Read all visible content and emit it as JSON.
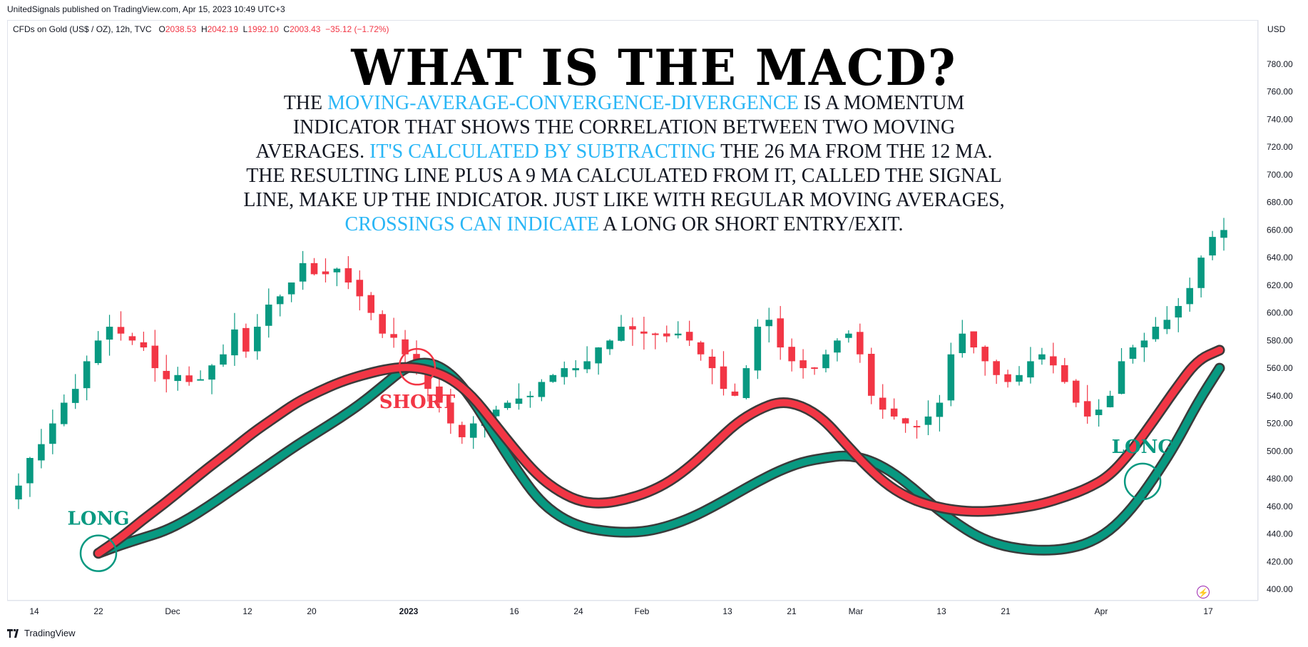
{
  "header": {
    "published": "UnitedSignals published on TradingView.com, Apr 15, 2023 10:49 UTC+3",
    "symbol": "CFDs on Gold (US$ / OZ), 12h, TVC",
    "o_label": "O",
    "o_value": "2038.53",
    "h_label": "H",
    "h_value": "2042.19",
    "l_label": "L",
    "l_value": "1992.10",
    "c_label": "C",
    "c_value": "2003.43",
    "change": "−35.12 (−1.72%)",
    "currency": "USD"
  },
  "annotation": {
    "title": "WHAT IS THE MACD?",
    "lines": [
      [
        {
          "t": "THE "
        },
        {
          "t": "MOVING-AVERAGE-CONVERGENCE-DIVERGENCE",
          "hl": true
        },
        {
          "t": " IS A MOMENTUM"
        }
      ],
      [
        {
          "t": "INDICATOR THAT SHOWS THE CORRELATION BETWEEN TWO MOVING"
        }
      ],
      [
        {
          "t": "AVERAGES. "
        },
        {
          "t": "IT'S CALCULATED BY SUBTRACTING",
          "hl": true
        },
        {
          "t": " THE 26 MA FROM THE 12 MA."
        }
      ],
      [
        {
          "t": "THE RESULTING LINE PLUS A 9 MA CALCULATED FROM IT, CALLED THE SIGNAL"
        }
      ],
      [
        {
          "t": "LINE, MAKE UP THE INDICATOR. JUST LIKE WITH REGULAR MOVING AVERAGES,"
        }
      ],
      [
        {
          "t": "CROSSINGS CAN INDICATE",
          "hl": true
        },
        {
          "t": " A LONG OR SHORT ENTRY/EXIT."
        }
      ]
    ],
    "markers": [
      {
        "label": "LONG",
        "color": "#089981"
      },
      {
        "label": "SHORT",
        "color": "#f23645"
      },
      {
        "label": "LONG",
        "color": "#089981"
      }
    ]
  },
  "footer": {
    "brand": "TradingView"
  },
  "colors": {
    "up": "#089981",
    "down": "#f23645",
    "highlight": "#29b6f6"
  },
  "chart_data": {
    "type": "candlestick",
    "ylim": [
      390,
      800
    ],
    "y_ticks": [
      400,
      420,
      440,
      460,
      480,
      500,
      520,
      540,
      560,
      580,
      600,
      620,
      640,
      660,
      680,
      700,
      720,
      740,
      760,
      780
    ],
    "x_tick_labels": [
      "14",
      "22",
      "Dec",
      "12",
      "20",
      "2023",
      "16",
      "24",
      "Feb",
      "13",
      "21",
      "Mar",
      "13",
      "21",
      "Apr",
      "17"
    ],
    "close_path": [
      475,
      495,
      505,
      520,
      535,
      545,
      565,
      580,
      590,
      585,
      580,
      575,
      560,
      552,
      555,
      550,
      552,
      562,
      570,
      588,
      572,
      590,
      606,
      612,
      622,
      636,
      628,
      628,
      632,
      622,
      612,
      600,
      585,
      582,
      570,
      560,
      545,
      535,
      520,
      510,
      520,
      525,
      530,
      535,
      538,
      540,
      550,
      555,
      560,
      560,
      565,
      575,
      580,
      590,
      588,
      585,
      584,
      583,
      585,
      580,
      570,
      560,
      545,
      540,
      560,
      590,
      595,
      575,
      565,
      560,
      560,
      570,
      580,
      585,
      570,
      540,
      530,
      525,
      520,
      518,
      525,
      535,
      570,
      585,
      575,
      565,
      555,
      550,
      555,
      565,
      570,
      562,
      550,
      535,
      525,
      530,
      540,
      565,
      575,
      580,
      590,
      595,
      605,
      618,
      640,
      655,
      660
    ],
    "series": [
      {
        "name": "",
        "color": "#f23645",
        "values": [
          426,
          437,
          450,
          462,
          475,
          488,
          500,
          513,
          524,
          535,
          543,
          550,
          555,
          559,
          561,
          559,
          553,
          540,
          520,
          500,
          482,
          470,
          463,
          462,
          465,
          470,
          478,
          490,
          505,
          520,
          530,
          536,
          533,
          523,
          505,
          488,
          474,
          465,
          460,
          457,
          456,
          457,
          459,
          462,
          467,
          473,
          482,
          500,
          522,
          545,
          566,
          573
        ]
      },
      {
        "name": "",
        "color": "#089981",
        "values": [
          426,
          432,
          437,
          442,
          450,
          460,
          471,
          482,
          493,
          504,
          514,
          524,
          535,
          548,
          561,
          565,
          557,
          538,
          512,
          487,
          465,
          452,
          445,
          442,
          441,
          442,
          446,
          452,
          460,
          469,
          478,
          486,
          492,
          495,
          497,
          494,
          486,
          474,
          460,
          448,
          438,
          432,
          429,
          428,
          429,
          433,
          442,
          458,
          480,
          505,
          535,
          560
        ]
      }
    ],
    "crossings": [
      {
        "label": "LONG",
        "x": 0,
        "y": 426
      },
      {
        "label": "SHORT",
        "x": 14.5,
        "y": 561
      },
      {
        "label": "LONG",
        "x": 47.5,
        "y": 478
      }
    ]
  }
}
